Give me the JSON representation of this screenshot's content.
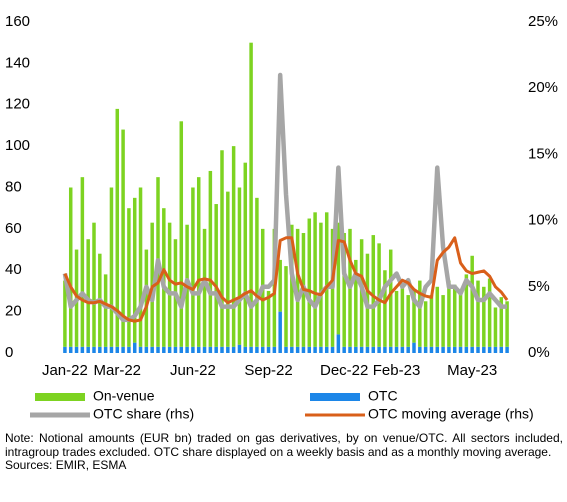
{
  "chart_data": {
    "type": "bar",
    "stacked": true,
    "categories": [
      "Jan-22",
      null,
      null,
      null,
      null,
      null,
      null,
      null,
      null,
      "Mar-22",
      null,
      null,
      null,
      null,
      null,
      null,
      null,
      null,
      null,
      null,
      null,
      null,
      "Jun-22",
      null,
      null,
      null,
      null,
      null,
      null,
      null,
      null,
      null,
      null,
      null,
      null,
      "Sep-22",
      null,
      null,
      null,
      null,
      null,
      null,
      null,
      null,
      null,
      null,
      null,
      null,
      "Dec-22",
      null,
      null,
      null,
      null,
      null,
      null,
      null,
      null,
      "Feb-23",
      null,
      null,
      null,
      null,
      null,
      null,
      null,
      null,
      null,
      null,
      null,
      null,
      "May-23",
      null,
      null,
      null,
      null,
      null,
      null
    ],
    "series": [
      {
        "name": "OTC",
        "color": "#1c86e8",
        "values": [
          3,
          3,
          3,
          3,
          3,
          3,
          3,
          3,
          3,
          3,
          3,
          3,
          5,
          3,
          3,
          3,
          3,
          3,
          3,
          3,
          3,
          3,
          3,
          3,
          3,
          3,
          3,
          3,
          3,
          3,
          4,
          3,
          3,
          3,
          3,
          3,
          3,
          20,
          3,
          3,
          3,
          3,
          3,
          3,
          3,
          3,
          3,
          9,
          3,
          3,
          3,
          3,
          3,
          3,
          3,
          3,
          3,
          3,
          3,
          3,
          5,
          3,
          3,
          3,
          3,
          3,
          3,
          3,
          3,
          3,
          3,
          3,
          3,
          3,
          3,
          3,
          3
        ]
      },
      {
        "name": "On-venue",
        "color": "#7dd321",
        "values": [
          32,
          77,
          47,
          82,
          52,
          60,
          45,
          35,
          77,
          115,
          105,
          67,
          70,
          77,
          47,
          60,
          82,
          67,
          60,
          52,
          109,
          59,
          77,
          82,
          57,
          85,
          69,
          95,
          75,
          97,
          76,
          89,
          147,
          72,
          57,
          27,
          57,
          25,
          39,
          59,
          57,
          55,
          62,
          65,
          60,
          65,
          57,
          54,
          55,
          57,
          42,
          52,
          45,
          54,
          50,
          37,
          47,
          27,
          29,
          25,
          25,
          32,
          22,
          25,
          29,
          25,
          32,
          30,
          27,
          35,
          44,
          32,
          29,
          33,
          19,
          24,
          22
        ]
      },
      {
        "name": "OTC share (rhs)",
        "color": "#a6a6a6",
        "type": "line",
        "axis": "y2",
        "values": [
          6,
          3.5,
          4,
          4.5,
          4,
          3.8,
          4,
          3.5,
          3.5,
          3,
          2.5,
          2.5,
          2.8,
          3.5,
          5,
          4,
          7,
          5,
          4.5,
          4.5,
          3.5,
          5.5,
          4.5,
          4.5,
          5.5,
          4.5,
          4.5,
          3.5,
          3.5,
          3.5,
          4,
          4.5,
          3.5,
          4,
          5,
          5,
          5.5,
          21,
          12,
          6,
          4,
          5,
          4,
          3.5,
          4.5,
          5,
          5,
          14,
          6,
          5,
          6,
          5,
          3.5,
          3.5,
          4,
          5,
          5.5,
          6,
          5,
          5.5,
          4,
          3.5,
          5,
          5.5,
          14,
          8,
          5,
          5,
          4.5,
          5.5,
          5,
          4,
          4,
          4.5,
          4,
          3.5,
          3.5
        ]
      },
      {
        "name": "OTC moving average (rhs)",
        "color": "#d95f1a",
        "type": "line",
        "axis": "y2",
        "values": [
          6,
          5,
          4.3,
          4,
          3.8,
          3.8,
          3.9,
          3.7,
          3.5,
          3.2,
          2.8,
          2.5,
          2.4,
          2.5,
          3.5,
          5,
          5.3,
          6.3,
          5.5,
          5.2,
          5.3,
          5,
          4.8,
          5.5,
          5.6,
          5.5,
          5,
          4.2,
          3.8,
          4,
          4.2,
          4.5,
          4.7,
          4.3,
          4,
          4.2,
          4.5,
          8.5,
          8.7,
          8.7,
          6,
          4.8,
          4.7,
          4.5,
          4.4,
          5,
          5.5,
          8.5,
          8.4,
          7,
          6,
          5.8,
          4.7,
          4.3,
          4,
          3.8,
          4.5,
          5,
          5.5,
          5.3,
          4.8,
          4.5,
          4.3,
          4.2,
          7,
          7.6,
          8,
          8.7,
          6.8,
          6.2,
          6,
          6.1,
          6.2,
          5.8,
          5,
          4.6,
          4
        ]
      }
    ],
    "ylim": [
      0,
      160
    ],
    "yticks": [
      0,
      20,
      40,
      60,
      80,
      100,
      120,
      140,
      160
    ],
    "y2lim": [
      0,
      25
    ],
    "y2ticks": [
      {
        "value": 0,
        "label": "0%"
      },
      {
        "value": 5,
        "label": "5%"
      },
      {
        "value": 10,
        "label": "10%"
      },
      {
        "value": 15,
        "label": "15%"
      },
      {
        "value": 20,
        "label": "20%"
      },
      {
        "value": 25,
        "label": "25%"
      }
    ],
    "grid": false,
    "note": "Note: Notional amounts (EUR bn) traded on gas derivatives, by on venue/OTC. All sectors included, intragroup trades excluded. OTC share displayed on a weekly basis and as a monthly moving average.",
    "sources": "Sources: EMIR, ESMA"
  }
}
